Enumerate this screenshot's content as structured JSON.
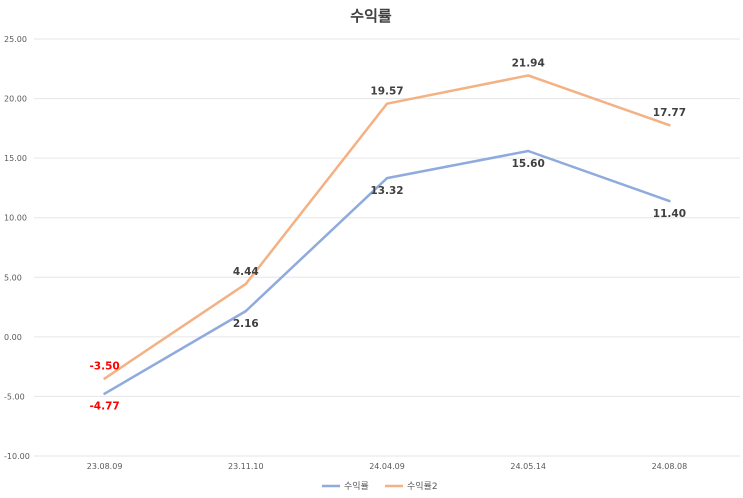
{
  "chart_data": {
    "type": "line",
    "title": "수익률",
    "categories": [
      "23.08.09",
      "23.11.10",
      "24.04.09",
      "24.05.14",
      "24.08.08"
    ],
    "y_ticks": [
      "-10.00",
      "-5.00",
      "0.00",
      "5.00",
      "10.00",
      "15.00",
      "20.00",
      "25.00"
    ],
    "ylim": [
      -10,
      25
    ],
    "grid": true,
    "legend_position": "bottom",
    "series": [
      {
        "name": "수익률",
        "color": "#8faadc",
        "values": [
          -4.77,
          2.16,
          13.32,
          15.6,
          11.4
        ],
        "labels": [
          "-4.77",
          "2.16",
          "13.32",
          "15.60",
          "11.40"
        ],
        "label_placement": "below"
      },
      {
        "name": "수익률2",
        "color": "#f4b183",
        "values": [
          -3.5,
          4.44,
          19.57,
          21.94,
          17.77
        ],
        "labels": [
          "-3.50",
          "4.44",
          "19.57",
          "21.94",
          "17.77"
        ],
        "label_placement": "above"
      }
    ],
    "negative_label_color": "#ff0000"
  }
}
